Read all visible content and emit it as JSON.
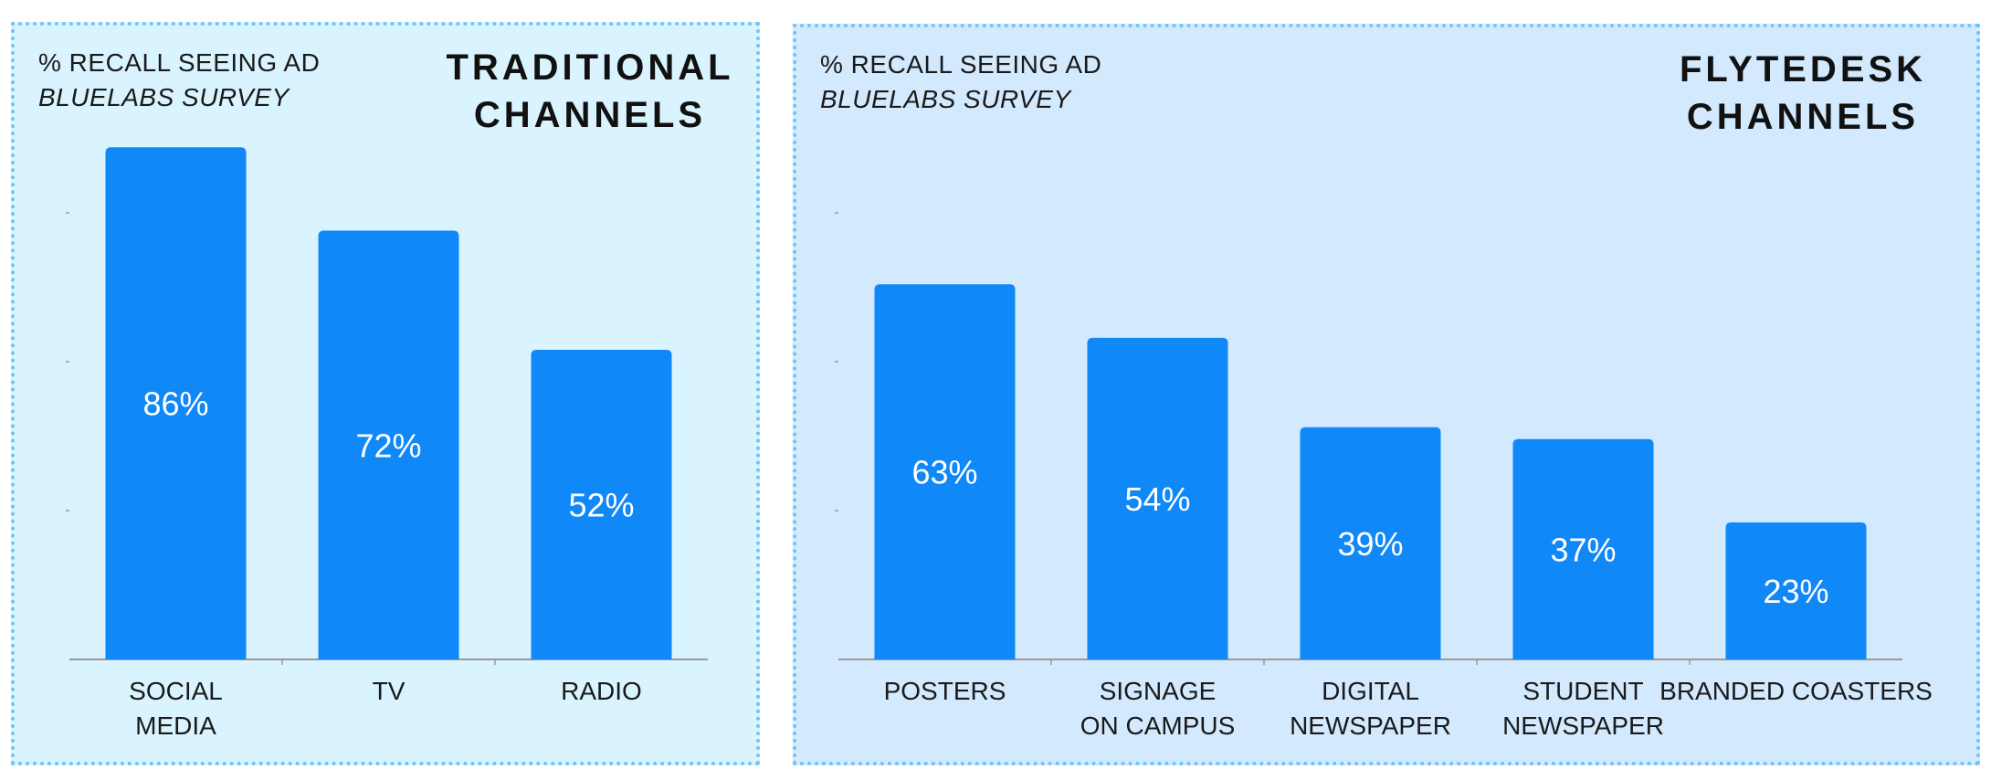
{
  "colors": {
    "bar": "#1188f7",
    "left_bg": "#d9f4ff",
    "right_bg": "#d3e9fd",
    "border": "#6cc6f5",
    "axis": "#9a9a9a"
  },
  "chart_data": [
    {
      "type": "bar",
      "title_lines": [
        "TRADITIONAL",
        "CHANNELS"
      ],
      "ylabel": "% RECALL SEEING AD",
      "subtitle": "BLUELABS SURVEY",
      "ylim": [
        0,
        100
      ],
      "categories": [
        [
          "SOCIAL",
          "MEDIA"
        ],
        [
          "TV"
        ],
        [
          "RADIO"
        ]
      ],
      "values": [
        86,
        72,
        52
      ],
      "value_labels": [
        "86%",
        "72%",
        "52%"
      ]
    },
    {
      "type": "bar",
      "title_lines": [
        "FLYTEDESK",
        "CHANNELS"
      ],
      "ylabel": "% RECALL SEEING AD",
      "subtitle": "BLUELABS SURVEY",
      "ylim": [
        0,
        100
      ],
      "categories": [
        [
          "POSTERS"
        ],
        [
          "SIGNAGE",
          "ON CAMPUS"
        ],
        [
          "DIGITAL",
          "NEWSPAPER"
        ],
        [
          "STUDENT",
          "NEWSPAPER"
        ],
        [
          "BRANDED COASTERS"
        ]
      ],
      "values": [
        63,
        54,
        39,
        37,
        23
      ],
      "value_labels": [
        "63%",
        "54%",
        "39%",
        "37%",
        "23%"
      ]
    }
  ]
}
